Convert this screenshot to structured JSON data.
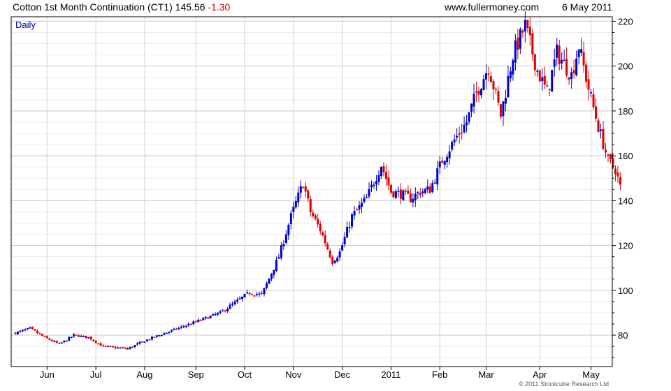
{
  "header": {
    "title": "Cotton 1st Month Continuation (CT1) 145.56",
    "change": "-1.30",
    "site": "www.fullermoney.com",
    "date": "6 May 2011"
  },
  "chart_data": {
    "type": "candlestick",
    "period_label": "Daily",
    "x_tick_labels": [
      "Jun",
      "Jul",
      "Aug",
      "Sep",
      "Oct",
      "Nov",
      "Dec",
      "2011",
      "Feb",
      "Mar",
      "Apr",
      "May"
    ],
    "y_ticks": [
      80,
      100,
      120,
      140,
      160,
      180,
      200,
      220
    ],
    "ylim": [
      66,
      222
    ],
    "xlim": [
      0,
      243
    ],
    "month_starts": [
      13,
      33,
      53,
      74,
      94,
      114,
      134,
      154,
      174,
      193,
      215,
      236
    ],
    "grid": true,
    "y_axis_side": "right",
    "up_color": "#0000cc",
    "down_color": "#dd0000",
    "anchors": [
      [
        0,
        81
      ],
      [
        6,
        83
      ],
      [
        12,
        79
      ],
      [
        18,
        76
      ],
      [
        24,
        80
      ],
      [
        30,
        79
      ],
      [
        36,
        75
      ],
      [
        46,
        74
      ],
      [
        54,
        78
      ],
      [
        64,
        82
      ],
      [
        74,
        86
      ],
      [
        84,
        90
      ],
      [
        96,
        99
      ],
      [
        101,
        98
      ],
      [
        108,
        115
      ],
      [
        113,
        133
      ],
      [
        118,
        148
      ],
      [
        121,
        135
      ],
      [
        125,
        127
      ],
      [
        130,
        113
      ],
      [
        133,
        117
      ],
      [
        138,
        133
      ],
      [
        144,
        141
      ],
      [
        150,
        156
      ],
      [
        154,
        144
      ],
      [
        158,
        143
      ],
      [
        162,
        141
      ],
      [
        166,
        144
      ],
      [
        170,
        145
      ],
      [
        175,
        158
      ],
      [
        180,
        167
      ],
      [
        185,
        175
      ],
      [
        189,
        188
      ],
      [
        194,
        200
      ],
      [
        199,
        178
      ],
      [
        204,
        205
      ],
      [
        209,
        218
      ],
      [
        214,
        198
      ],
      [
        218,
        188
      ],
      [
        222,
        206
      ],
      [
        228,
        196
      ],
      [
        231,
        209
      ],
      [
        235,
        190
      ],
      [
        239,
        173
      ],
      [
        243,
        158
      ],
      [
        246,
        154
      ],
      [
        248,
        146
      ]
    ]
  },
  "footer": {
    "credit": "© 2011 Stockcube Research Ltd"
  }
}
